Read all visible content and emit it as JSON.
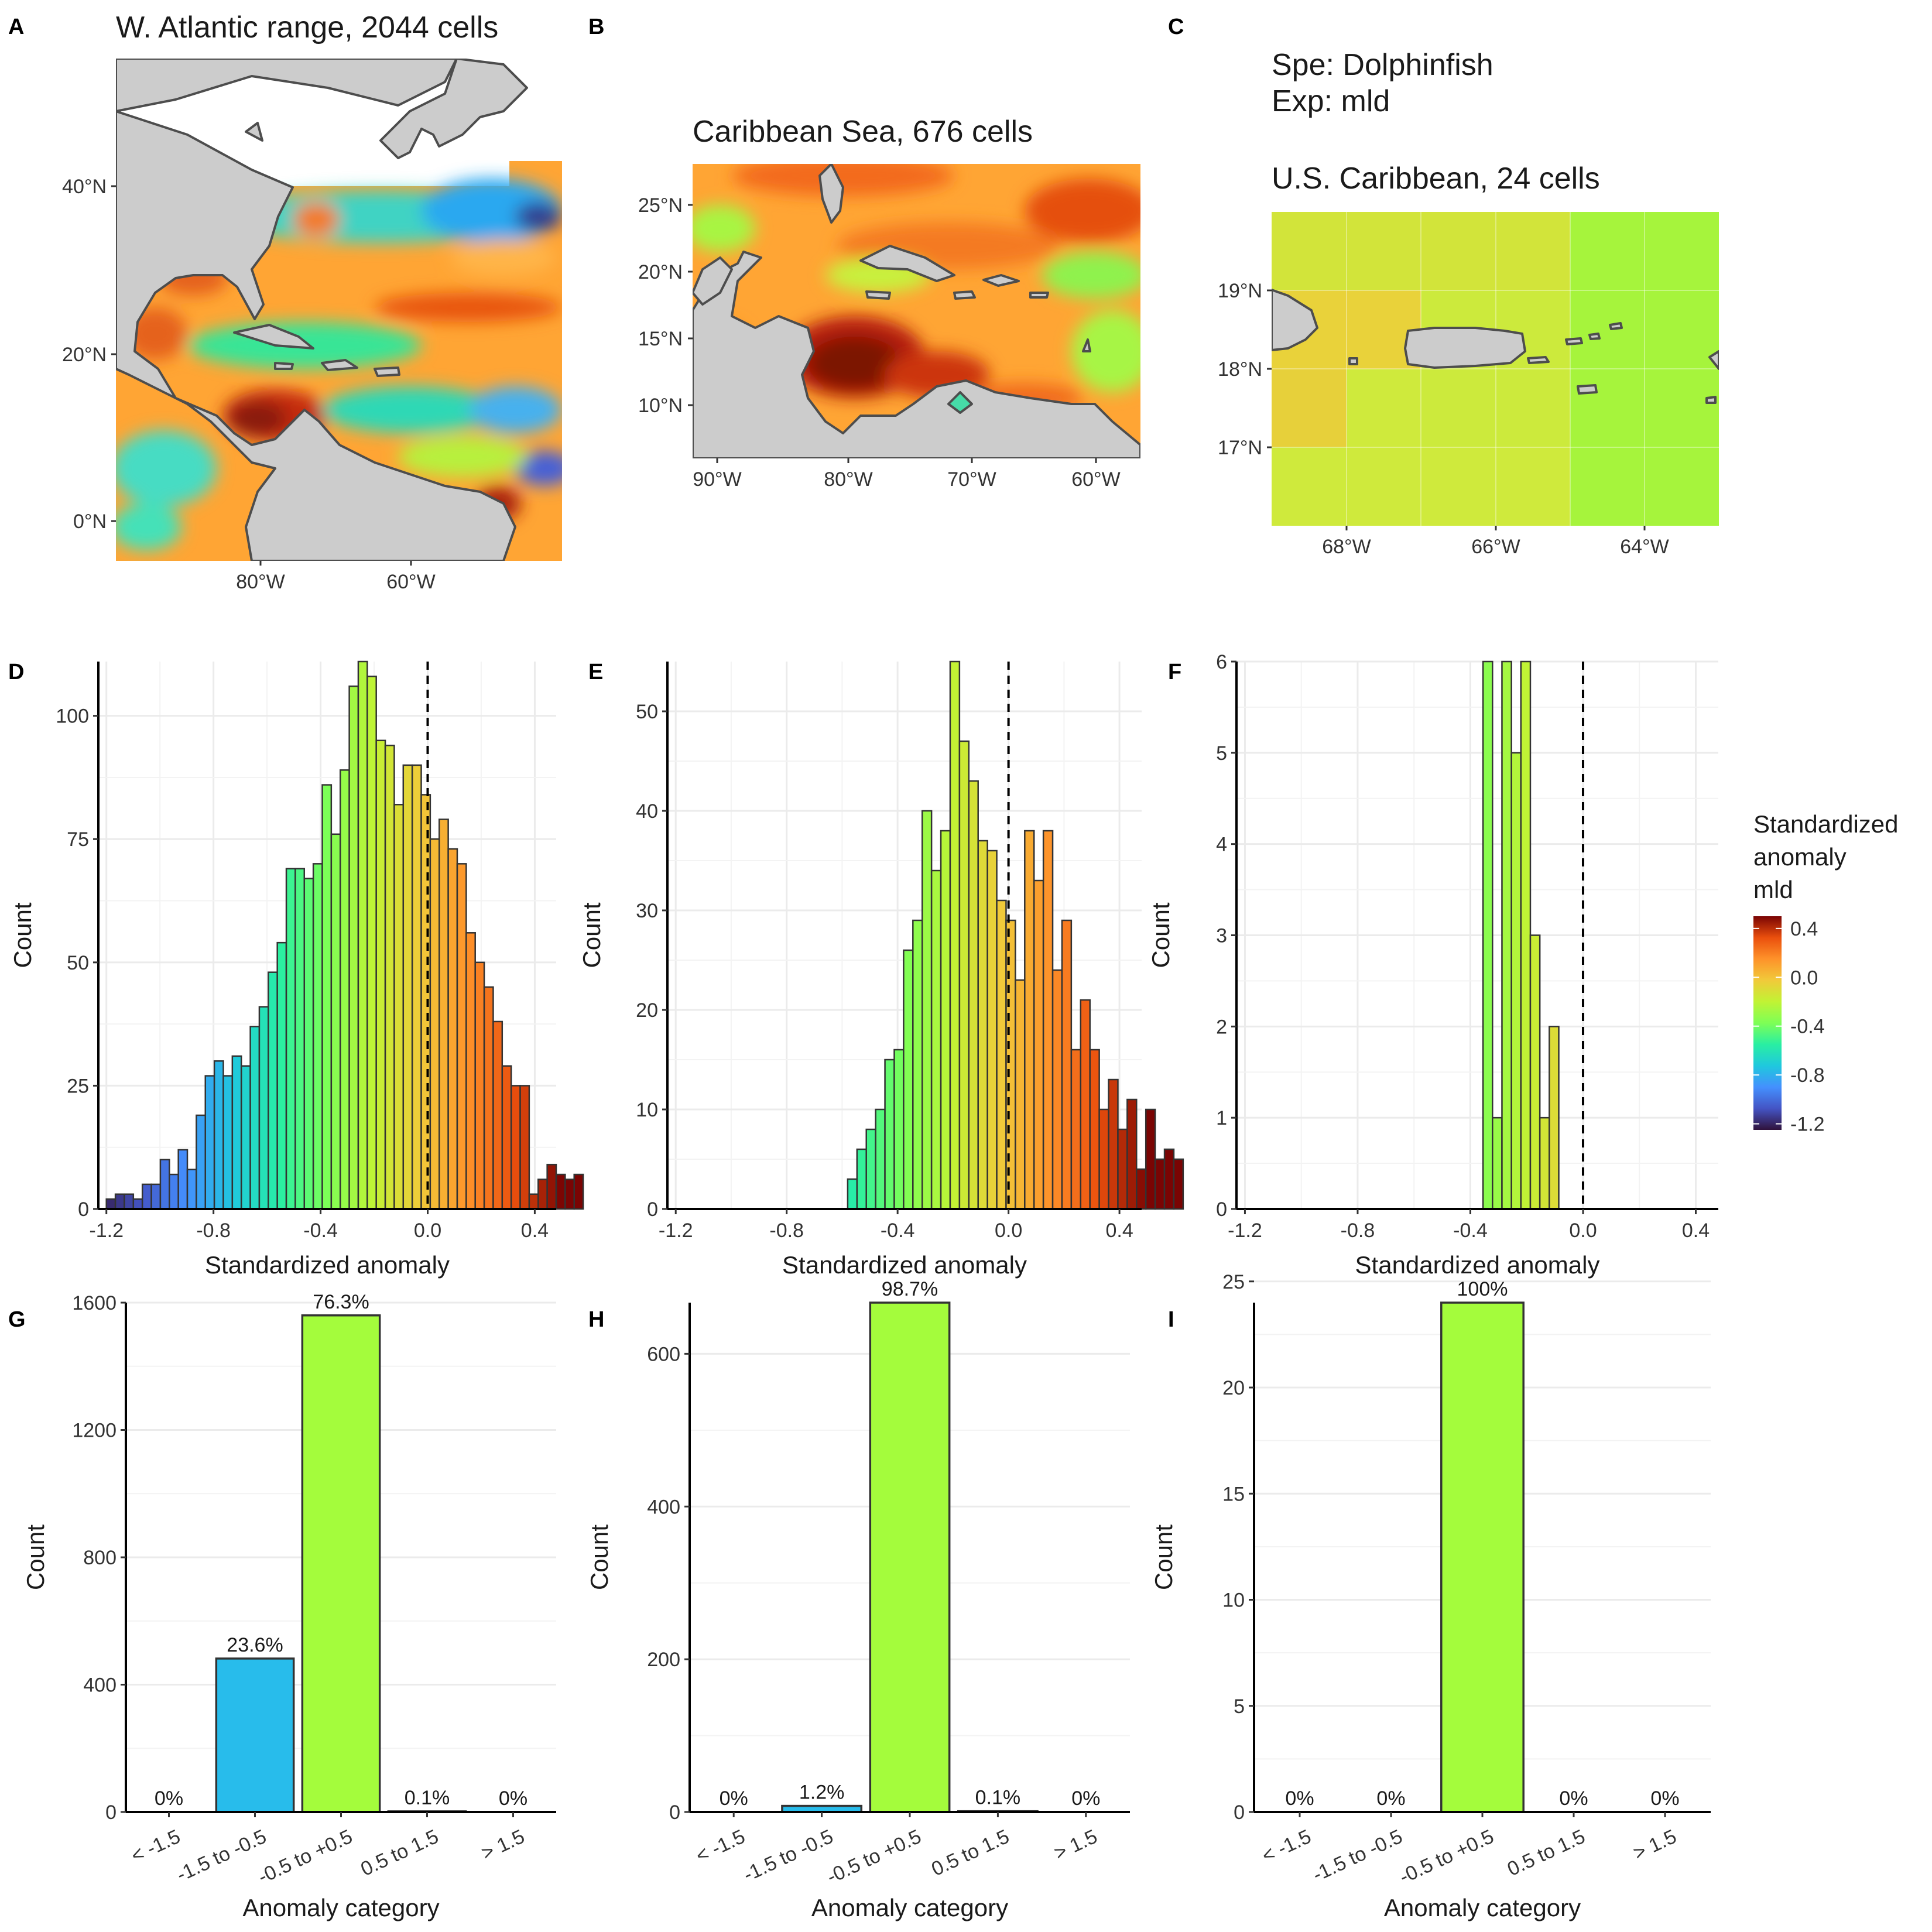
{
  "figure": {
    "species_line": "Spe: Dolphinfish",
    "exposure_line": "Exp: mld"
  },
  "colors": {
    "ocean_base": "#ffa534",
    "land": "#cccccc",
    "land_border": "#4d4d4d",
    "grid": "#ebebeb",
    "bar_outline": "#333333",
    "cat_blue": "#28bceb",
    "cat_green": "#a4fc3c"
  },
  "maps": [
    {
      "id": "A",
      "letter": "A",
      "title": "W. Atlantic range, 2044 cells",
      "x_ticks": [
        "80°W",
        "60°W"
      ],
      "x_tick_values": [
        -80,
        -60
      ],
      "y_ticks": [
        "0°N",
        "20°N",
        "40°N"
      ],
      "y_tick_values": [
        0,
        20,
        40
      ],
      "xlim": [
        -99,
        -40
      ],
      "ylim": [
        -5,
        55
      ]
    },
    {
      "id": "B",
      "letter": "B",
      "title": "Caribbean Sea, 676 cells",
      "x_ticks": [
        "90°W",
        "80°W",
        "70°W",
        "60°W"
      ],
      "x_tick_values": [
        -90,
        -80,
        -70,
        -60
      ],
      "y_ticks": [
        "10°N",
        "15°N",
        "20°N",
        "25°N"
      ],
      "y_tick_values": [
        10,
        15,
        20,
        25
      ],
      "xlim": [
        -91.5,
        -57.5
      ],
      "ylim": [
        6,
        28
      ]
    },
    {
      "id": "C",
      "letter": "C",
      "title": "U.S. Caribbean, 24 cells",
      "x_ticks": [
        "68°W",
        "66°W",
        "64°W"
      ],
      "x_tick_values": [
        -68,
        -66,
        -64
      ],
      "y_ticks": [
        "17°N",
        "18°N",
        "19°N"
      ],
      "y_tick_values": [
        17,
        18,
        19
      ],
      "xlim": [
        -69,
        -63
      ],
      "ylim": [
        16,
        20
      ]
    }
  ],
  "legend": {
    "title_lines": [
      "Standardized",
      "anomaly",
      "mld"
    ],
    "ticks": [
      "0.4",
      "0.0",
      "-0.4",
      "-0.8",
      "-1.2"
    ],
    "tick_values": [
      0.4,
      0.0,
      -0.4,
      -0.8,
      -1.2
    ],
    "range": [
      -1.25,
      0.5
    ]
  },
  "chart_data": [
    {
      "id": "D",
      "letter": "D",
      "type": "bar",
      "subtype": "histogram",
      "xlabel": "Standardized anomaly",
      "ylabel": "Count",
      "xlim": [
        -1.2,
        0.45
      ],
      "ylim": [
        0,
        111
      ],
      "x_ticks": [
        "-1.2",
        "-0.8",
        "-0.4",
        "0.0",
        "0.4"
      ],
      "x_tick_values": [
        -1.2,
        -0.8,
        -0.4,
        0.0,
        0.4
      ],
      "y_ticks": [
        "0",
        "25",
        "50",
        "75",
        "100"
      ],
      "y_tick_values": [
        0,
        25,
        50,
        75,
        100
      ],
      "reference_line_x": 0.0,
      "bin_start": -1.2,
      "bin_width": 0.0336,
      "values": [
        2,
        3,
        3,
        2,
        5,
        5,
        10,
        7,
        12,
        8,
        19,
        27,
        30,
        27,
        31,
        29,
        37,
        41,
        48,
        54,
        69,
        69,
        67,
        70,
        86,
        76,
        89,
        106,
        111,
        108,
        95,
        94,
        82,
        90,
        90,
        84,
        75,
        79,
        73,
        70,
        56,
        50,
        45,
        38,
        29,
        25,
        25,
        3,
        6,
        9,
        7,
        6,
        7
      ]
    },
    {
      "id": "E",
      "letter": "E",
      "type": "bar",
      "subtype": "histogram",
      "xlabel": "Standardized anomaly",
      "ylabel": "Count",
      "xlim": [
        -1.2,
        0.45
      ],
      "ylim": [
        0,
        55
      ],
      "x_ticks": [
        "-1.2",
        "-0.8",
        "-0.4",
        "0.0",
        "0.4"
      ],
      "x_tick_values": [
        -1.2,
        -0.8,
        -0.4,
        0.0,
        0.4
      ],
      "y_ticks": [
        "0",
        "10",
        "20",
        "30",
        "40",
        "50"
      ],
      "y_tick_values": [
        0,
        10,
        20,
        30,
        40,
        50
      ],
      "reference_line_x": 0.0,
      "bin_start": -0.58,
      "bin_width": 0.0336,
      "values": [
        3,
        6,
        8,
        10,
        15,
        16,
        26,
        29,
        40,
        34,
        38,
        55,
        47,
        43,
        37,
        36,
        31,
        29,
        23,
        38,
        33,
        38,
        24,
        29,
        16,
        21,
        16,
        10,
        13,
        8,
        11,
        4,
        10,
        5,
        6,
        5
      ]
    },
    {
      "id": "F",
      "letter": "F",
      "type": "bar",
      "subtype": "histogram",
      "xlabel": "Standardized anomaly",
      "ylabel": "Count",
      "xlim": [
        -1.2,
        0.45
      ],
      "ylim": [
        0,
        6
      ],
      "x_ticks": [
        "-1.2",
        "-0.8",
        "-0.4",
        "0.0",
        "0.4"
      ],
      "x_tick_values": [
        -1.2,
        -0.8,
        -0.4,
        0.0,
        0.4
      ],
      "y_ticks": [
        "0",
        "1",
        "2",
        "3",
        "4",
        "5",
        "6"
      ],
      "y_tick_values": [
        0,
        1,
        2,
        3,
        4,
        5,
        6
      ],
      "reference_line_x": 0.0,
      "bin_start": -0.355,
      "bin_width": 0.0336,
      "values": [
        6,
        1,
        6,
        5,
        6,
        3,
        1,
        2
      ]
    },
    {
      "id": "G",
      "letter": "G",
      "type": "bar",
      "xlabel": "Anomaly category",
      "ylabel": "Count",
      "categories": [
        "< -1.5",
        "-1.5 to -0.5",
        "-0.5 to +0.5",
        "0.5 to 1.5",
        "> 1.5"
      ],
      "values": [
        0,
        482,
        1560,
        2,
        0
      ],
      "labels": [
        "0%",
        "23.6%",
        "76.3%",
        "0.1%",
        "0%"
      ],
      "ylim": [
        0,
        1600
      ],
      "y_ticks": [
        "0",
        "400",
        "800",
        "1200",
        "1600"
      ],
      "y_tick_values": [
        0,
        400,
        800,
        1200,
        1600
      ]
    },
    {
      "id": "H",
      "letter": "H",
      "type": "bar",
      "xlabel": "Anomaly category",
      "ylabel": "Count",
      "categories": [
        "< -1.5",
        "-1.5 to -0.5",
        "-0.5 to +0.5",
        "0.5 to 1.5",
        "> 1.5"
      ],
      "values": [
        0,
        8,
        667,
        1,
        0
      ],
      "labels": [
        "0%",
        "1.2%",
        "98.7%",
        "0.1%",
        "0%"
      ],
      "ylim": [
        0,
        667
      ],
      "y_ticks": [
        "0",
        "200",
        "400",
        "600"
      ],
      "y_tick_values": [
        0,
        200,
        400,
        600
      ]
    },
    {
      "id": "I",
      "letter": "I",
      "type": "bar",
      "xlabel": "Anomaly category",
      "ylabel": "Count",
      "categories": [
        "< -1.5",
        "-1.5 to -0.5",
        "-0.5 to +0.5",
        "0.5 to 1.5",
        "> 1.5"
      ],
      "values": [
        0,
        0,
        24,
        0,
        0
      ],
      "labels": [
        "0%",
        "0%",
        "100%",
        "0%",
        "0%"
      ],
      "ylim": [
        0,
        24
      ],
      "y_ticks": [
        "0",
        "5",
        "10",
        "15",
        "20",
        "25"
      ],
      "y_tick_values": [
        0,
        5,
        10,
        15,
        20,
        25
      ]
    }
  ]
}
